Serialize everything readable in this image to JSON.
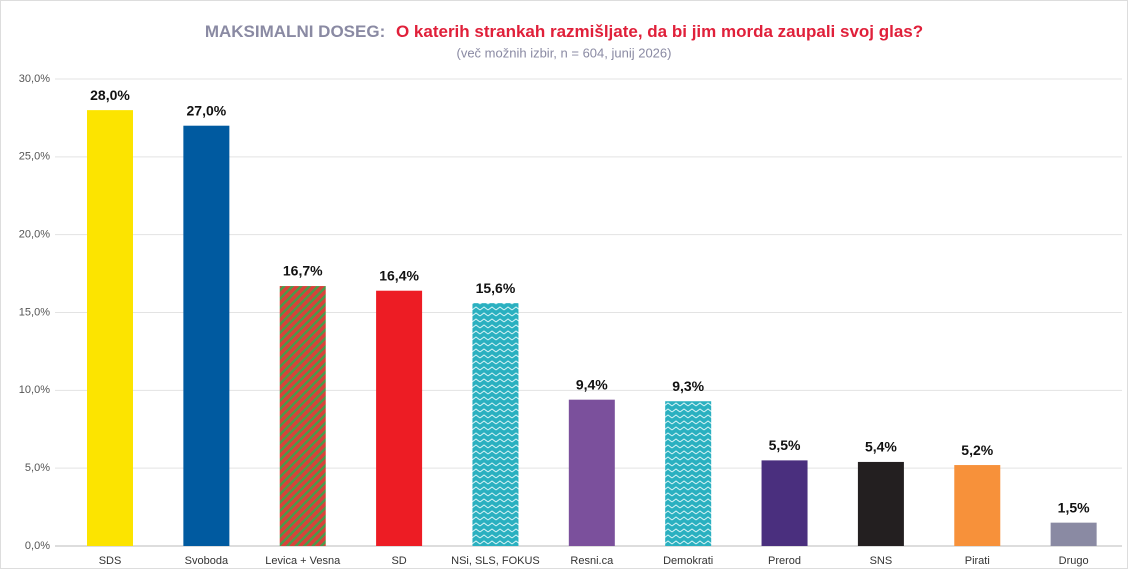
{
  "chart_data": {
    "type": "bar",
    "title": "MAKSIMALNI DOSEG:",
    "title_question": "O katerih strankah razmišljate, da bi jim morda zaupali svoj glas?",
    "subtitle": "(več možnih izbir, n = 604, junij 2026)",
    "categories": [
      "SDS",
      "Svoboda",
      "Levica + Vesna",
      "SD",
      "NSi, SLS, FOKUS",
      "Resni.ca",
      "Demokrati",
      "Prerod",
      "SNS",
      "Pirati",
      "Drugo"
    ],
    "values": [
      28.0,
      27.0,
      16.7,
      16.4,
      15.6,
      9.4,
      9.3,
      5.5,
      5.4,
      5.2,
      1.5
    ],
    "value_labels": [
      "28,0%",
      "27,0%",
      "16,7%",
      "16,4%",
      "15,6%",
      "9,4%",
      "9,3%",
      "5,5%",
      "5,4%",
      "5,2%",
      "1,5%"
    ],
    "colors": [
      "#fce400",
      "#005aa0",
      "#d9413a",
      "#ed1c24",
      "#2ab0c0",
      "#7b509c",
      "#17b3a8",
      "#4a2f7e",
      "#231f20",
      "#f7913a",
      "#8a8aa3"
    ],
    "patterns": [
      "solid",
      "solid",
      "stripes",
      "solid",
      "zigzag",
      "solid",
      "zigzag",
      "solid",
      "solid",
      "solid",
      "solid"
    ],
    "ylim": [
      0,
      30
    ],
    "yticks": [
      {
        "value": 0,
        "label": "0,0%"
      },
      {
        "value": 5,
        "label": "5,0%"
      },
      {
        "value": 10,
        "label": "10,0%"
      },
      {
        "value": 15,
        "label": "15,0%"
      },
      {
        "value": 20,
        "label": "20,0%"
      },
      {
        "value": 25,
        "label": "25,0%"
      },
      {
        "value": 30,
        "label": "30,0%"
      }
    ],
    "grid": true
  }
}
